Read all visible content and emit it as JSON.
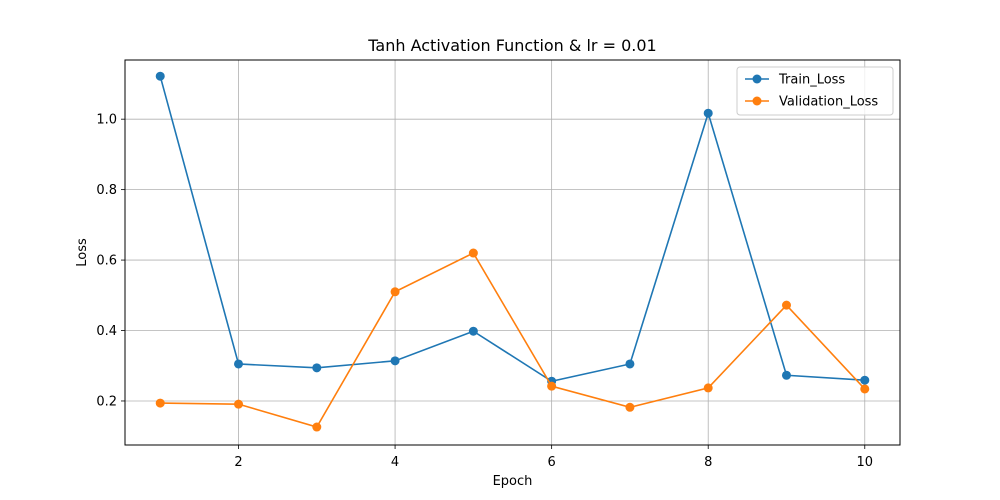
{
  "chart_data": {
    "type": "line",
    "title": "Tanh Activation Function & lr = 0.01",
    "xlabel": "Epoch",
    "ylabel": "Loss",
    "x": [
      1,
      2,
      3,
      4,
      5,
      6,
      7,
      8,
      9,
      10
    ],
    "xlim": [
      0.55,
      10.45
    ],
    "ylim": [
      0.075,
      1.168
    ],
    "xticks": [
      2,
      4,
      6,
      8,
      10
    ],
    "xtick_labels": [
      "2",
      "4",
      "6",
      "8",
      "10"
    ],
    "yticks": [
      0.2,
      0.4,
      0.6,
      0.8,
      1.0
    ],
    "ytick_labels": [
      "0.2",
      "0.4",
      "0.6",
      "0.8",
      "1.0"
    ],
    "grid": true,
    "legend_position": "top-right",
    "series": [
      {
        "name": "Train_Loss",
        "color": "#1f77b4",
        "values": [
          1.122,
          0.305,
          0.294,
          0.314,
          0.398,
          0.256,
          0.305,
          1.017,
          0.273,
          0.259
        ]
      },
      {
        "name": "Validation_Loss",
        "color": "#ff7f0e",
        "values": [
          0.194,
          0.191,
          0.126,
          0.51,
          0.62,
          0.242,
          0.182,
          0.237,
          0.472,
          0.234
        ]
      }
    ]
  }
}
